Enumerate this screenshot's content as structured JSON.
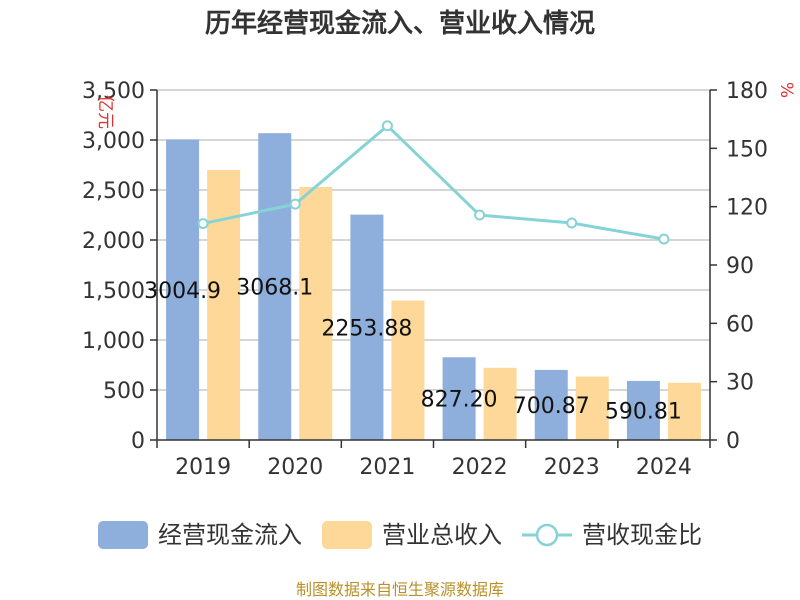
{
  "chart_data": {
    "type": "bar",
    "title": "历年经营现金流入、营业收入情况",
    "categories": [
      "2019",
      "2020",
      "2021",
      "2022",
      "2023",
      "2024"
    ],
    "series": [
      {
        "name": "经营现金流入",
        "kind": "bar",
        "axis": "left",
        "color": "#8eaedb",
        "values": [
          3004.9,
          3068.1,
          2253.88,
          827.2,
          700.87,
          590.81
        ]
      },
      {
        "name": "营业总收入",
        "kind": "bar",
        "axis": "left",
        "color": "#fdd899",
        "values": [
          2700,
          2530,
          1395,
          722,
          635,
          572
        ]
      },
      {
        "name": "营收现金比",
        "kind": "line",
        "axis": "right",
        "color": "#86d3d6",
        "values": [
          111.3,
          121.3,
          161.6,
          115.7,
          111.6,
          103.3
        ]
      }
    ],
    "data_labels": [
      "3004.9",
      "3068.1",
      "2253.88",
      "827.20",
      "700.87",
      "590.81"
    ],
    "y_left": {
      "unit": "亿元",
      "ylim": [
        0,
        3500
      ],
      "ticks": [
        0,
        500,
        1000,
        1500,
        2000,
        2500,
        3000,
        3500
      ],
      "tick_labels": [
        "0",
        "500",
        "1,000",
        "1,500",
        "2,000",
        "2,500",
        "3,000",
        "3,500"
      ]
    },
    "y_right": {
      "unit": "%",
      "ylim": [
        0,
        180
      ],
      "ticks": [
        0,
        30,
        60,
        90,
        120,
        150,
        180
      ],
      "tick_labels": [
        "0",
        "30",
        "60",
        "90",
        "120",
        "150",
        "180"
      ]
    },
    "grid": true,
    "legend_position": "bottom",
    "source": "制图数据来自恒生聚源数据库"
  }
}
